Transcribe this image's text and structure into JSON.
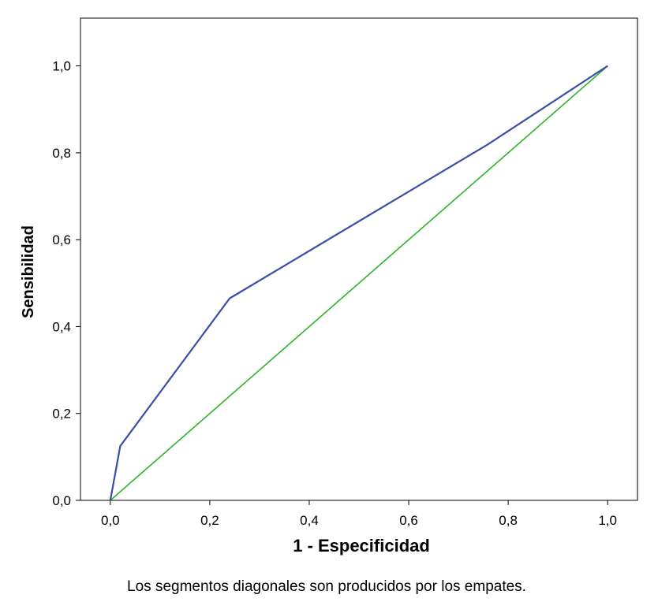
{
  "chart_data": {
    "type": "line",
    "xlabel": "1 - Especificidad",
    "ylabel": "Sensibilidad",
    "footnote": "Los segmentos diagonales son producidos por los empates.",
    "xlim": [
      -0.06,
      1.06
    ],
    "ylim": [
      0,
      1.11
    ],
    "xticks": [
      {
        "value": 0.0,
        "label": "0,0"
      },
      {
        "value": 0.2,
        "label": "0,2"
      },
      {
        "value": 0.4,
        "label": "0,4"
      },
      {
        "value": 0.6,
        "label": "0,6"
      },
      {
        "value": 0.8,
        "label": "0,8"
      },
      {
        "value": 1.0,
        "label": "1,0"
      }
    ],
    "yticks": [
      {
        "value": 0.0,
        "label": "0,0"
      },
      {
        "value": 0.2,
        "label": "0,2"
      },
      {
        "value": 0.4,
        "label": "0,4"
      },
      {
        "value": 0.6,
        "label": "0,6"
      },
      {
        "value": 0.8,
        "label": "0,8"
      },
      {
        "value": 1.0,
        "label": "1,0"
      }
    ],
    "grid": false,
    "series": [
      {
        "color": "#3a4fa3",
        "x": [
          0.0,
          0.02,
          0.24,
          0.76,
          1.0
        ],
        "y": [
          0.0,
          0.125,
          0.465,
          0.82,
          1.0
        ]
      },
      {
        "color": "#2db42d",
        "x": [
          0.0,
          1.0
        ],
        "y": [
          0.0,
          1.0
        ]
      }
    ]
  }
}
